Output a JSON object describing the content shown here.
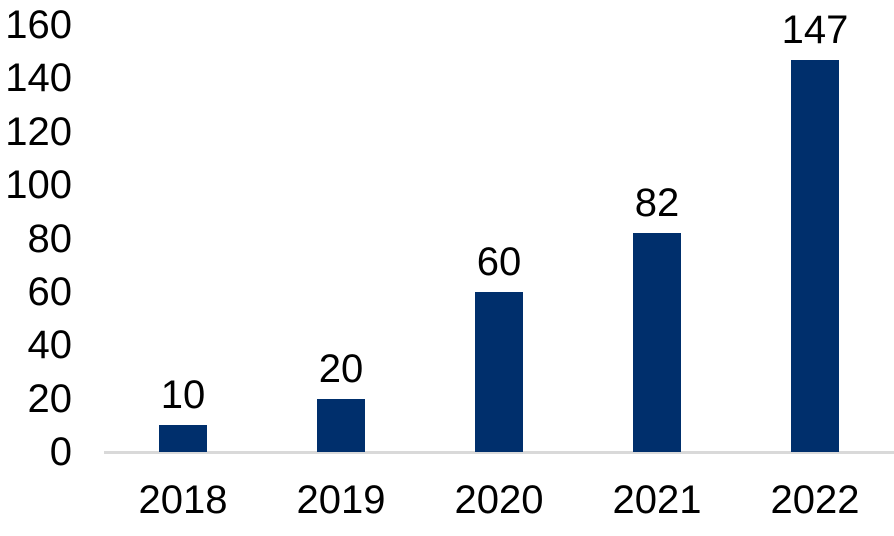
{
  "chart_data": {
    "type": "bar",
    "categories": [
      "2018",
      "2019",
      "2020",
      "2021",
      "2022"
    ],
    "values": [
      10,
      20,
      60,
      82,
      147
    ],
    "data_labels": [
      "10",
      "20",
      "60",
      "82",
      "147"
    ],
    "title": "",
    "xlabel": "",
    "ylabel": "",
    "ylim": [
      0,
      160
    ],
    "yticks": [
      0,
      20,
      40,
      60,
      80,
      100,
      120,
      140,
      160
    ],
    "grid": false,
    "legend_position": "none",
    "bar_color": "#002f6c",
    "axis_line_color": "#d9d9d9",
    "text_color": "#000000"
  }
}
